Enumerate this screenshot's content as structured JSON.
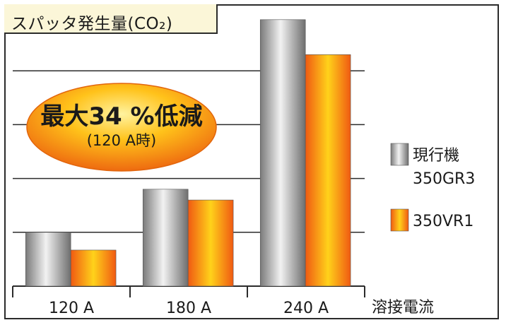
{
  "chart_data": {
    "type": "bar",
    "title": "スパッタ発生量(CO₂)",
    "categories": [
      "120 A",
      "180 A",
      "240 A"
    ],
    "xlabel": "溶接電流",
    "ylabel": "",
    "ylim": [
      0,
      5
    ],
    "grid": true,
    "legend_position": "right",
    "series": [
      {
        "name": "現行機 350GR3",
        "name_lines": [
          "現行機",
          "350GR3"
        ],
        "values": [
          1.0,
          1.8,
          4.95
        ],
        "color": "#9a9a9a"
      },
      {
        "name": "350VR1",
        "name_lines": [
          "350VR1"
        ],
        "values": [
          0.67,
          1.6,
          4.3
        ],
        "color": "#f57a10"
      }
    ],
    "annotation": {
      "main": "最大34 %低減",
      "sub": "(120 A時)"
    }
  }
}
